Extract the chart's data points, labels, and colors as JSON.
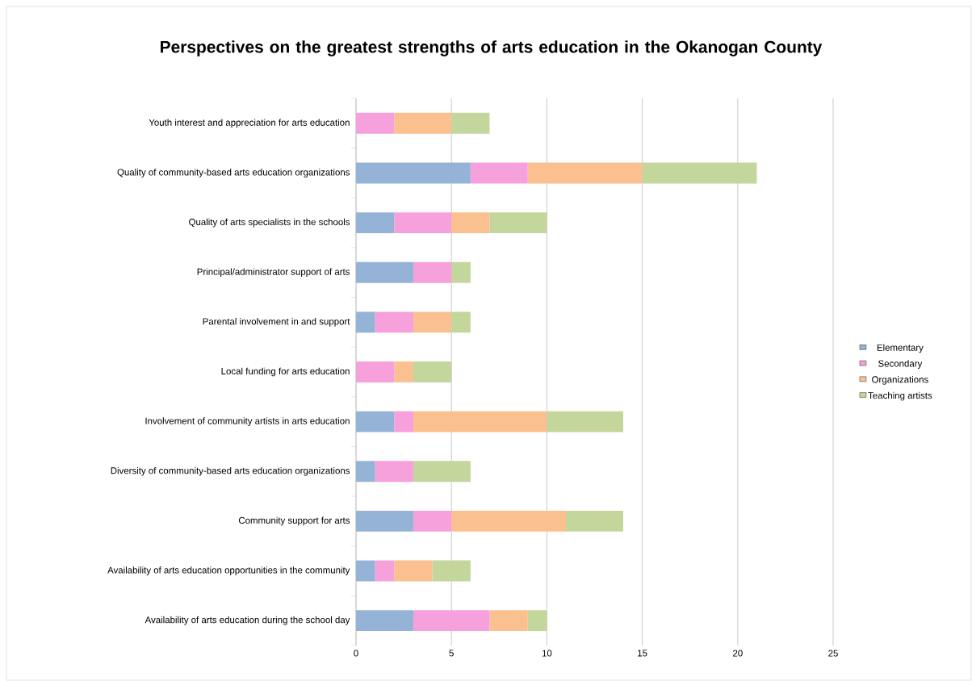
{
  "chart_data": {
    "type": "bar",
    "orientation": "horizontal",
    "stacked": true,
    "title": "Perspectives on the greatest strengths of arts education in the Okanogan County",
    "categories": [
      "Youth interest and appreciation for arts education",
      "Quality of community-based arts education organizations",
      "Quality of arts specialists in the schools",
      "Principal/administrator support of arts",
      "Parental involvement in and support",
      "Local funding for arts education",
      "Involvement of community artists in arts education",
      "Diversity of community-based arts education organizations",
      "Community support for arts",
      "Availability of arts education opportunities in the community",
      "Availability of arts education during the school day"
    ],
    "series": [
      {
        "name": "Elementary",
        "color": "#95b3d7",
        "values": [
          0,
          6,
          2,
          3,
          1,
          0,
          2,
          1,
          3,
          1,
          3
        ]
      },
      {
        "name": "Secondary",
        "color": "#f7a1dc",
        "values": [
          2,
          3,
          3,
          2,
          2,
          2,
          1,
          2,
          2,
          1,
          4
        ]
      },
      {
        "name": "Organizations",
        "color": "#fac090",
        "values": [
          3,
          6,
          2,
          0,
          2,
          1,
          7,
          0,
          6,
          2,
          2
        ]
      },
      {
        "name": "Teaching artists",
        "color": "#c3d69b",
        "values": [
          2,
          6,
          3,
          1,
          1,
          2,
          4,
          3,
          3,
          2,
          1
        ]
      }
    ],
    "xlim": [
      0,
      25
    ],
    "xticks": [
      0,
      5,
      10,
      15,
      20,
      25
    ],
    "grid": "x",
    "legend": "right"
  }
}
